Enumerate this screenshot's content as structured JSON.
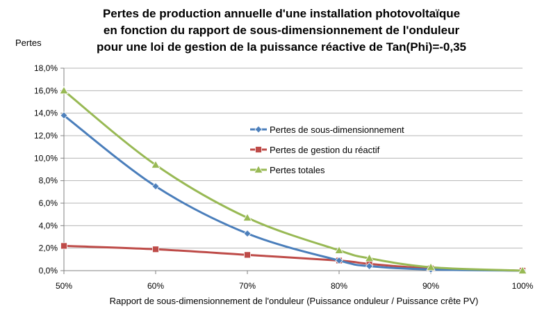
{
  "chart_data": {
    "type": "line",
    "title": [
      "Pertes de production annuelle d'une installation photovoltaïque",
      "en fonction du rapport de sous-dimensionnement de l'onduleur",
      "pour une loi de gestion de la puissance réactive de Tan(Phi)=-0,35"
    ],
    "xlabel": "Rapport de sous-dimensionnement de l'onduleur (Puissance onduleur / Puissance crête PV)",
    "ylabel": "Pertes",
    "xlim": [
      50,
      100
    ],
    "ylim": [
      0,
      18
    ],
    "x_ticks": [
      "50%",
      "60%",
      "70%",
      "80%",
      "90%",
      "100%"
    ],
    "y_ticks": [
      "0,0%",
      "2,0%",
      "4,0%",
      "6,0%",
      "8,0%",
      "10,0%",
      "12,0%",
      "14,0%",
      "16,0%",
      "18,0%"
    ],
    "grid": "horizontal",
    "legend_position": "center-right",
    "series": [
      {
        "name": "Pertes de sous-dimensionnement",
        "color": "#4a7ebb",
        "marker": "diamond",
        "x": [
          50,
          60,
          70,
          80,
          83.3,
          90,
          100
        ],
        "y": [
          13.8,
          7.5,
          3.3,
          0.9,
          0.4,
          0.1,
          0.0
        ]
      },
      {
        "name": "Pertes de gestion du réactif",
        "color": "#be4b48",
        "marker": "square",
        "x": [
          50,
          60,
          70,
          80,
          83.3,
          90,
          100
        ],
        "y": [
          2.2,
          1.9,
          1.4,
          0.9,
          0.6,
          0.2,
          0.0
        ]
      },
      {
        "name": "Pertes totales",
        "color": "#98b954",
        "marker": "triangle",
        "x": [
          50,
          60,
          70,
          80,
          83.3,
          90,
          100
        ],
        "y": [
          16.0,
          9.4,
          4.7,
          1.8,
          1.1,
          0.3,
          0.0
        ]
      }
    ]
  }
}
